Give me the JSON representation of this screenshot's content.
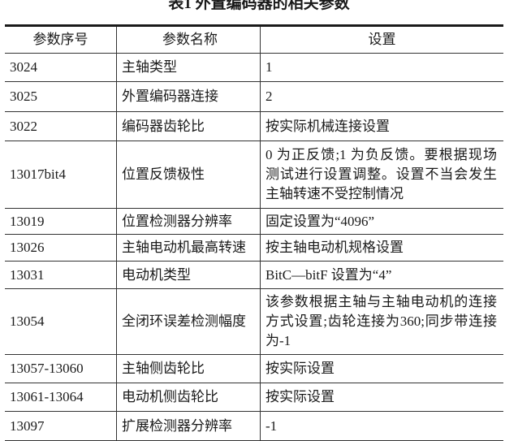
{
  "title": "表1   外置编码器的相关参数",
  "headers": [
    "参数序号",
    "参数名称",
    "设置"
  ],
  "rows": [
    {
      "no": "3024",
      "name": "主轴类型",
      "setting": "1"
    },
    {
      "no": "3025",
      "name": "外置编码器连接",
      "setting": "2"
    },
    {
      "no": "3022",
      "name": "编码器齿轮比",
      "setting": "按实际机械连接设置"
    },
    {
      "no": "13017bit4",
      "name": "位置反馈极性",
      "setting": "0 为正反馈;1 为负反馈。要根据现场测试进行设置调整。设置不当会发生主轴转速不受控制情况"
    },
    {
      "no": "13019",
      "name": "位置检测器分辨率",
      "setting": "固定设置为“4096”"
    },
    {
      "no": "13026",
      "name": "主轴电动机最高转速",
      "setting": "按主轴电动机规格设置"
    },
    {
      "no": "13031",
      "name": "电动机类型",
      "setting": "BitC—bitF 设置为“4”"
    },
    {
      "no": "13054",
      "name": "全闭环误差检测幅度",
      "setting": "该参数根据主轴与主轴电动机的连接方式设置;齿轮连接为360;同步带连接为-1"
    },
    {
      "no": "13057-13060",
      "name": "主轴侧齿轮比",
      "setting": "按实际设置"
    },
    {
      "no": "13061-13064",
      "name": "电动机侧齿轮比",
      "setting": "按实际设置"
    },
    {
      "no": "13097",
      "name": "扩展检测器分辨率",
      "setting": "-1"
    }
  ]
}
